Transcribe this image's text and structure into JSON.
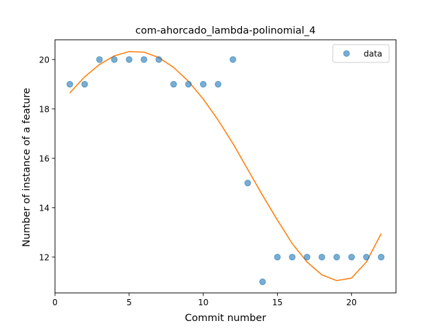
{
  "chart_data": {
    "type": "scatter",
    "title": "com-ahorcado_lambda-polinomial_4",
    "xlabel": "Commit number",
    "ylabel": "Number of instance of a feature",
    "xlim": [
      0,
      23
    ],
    "ylim": [
      10.55,
      20.8
    ],
    "xticks": [
      0,
      5,
      10,
      15,
      20
    ],
    "yticks": [
      12,
      14,
      16,
      18,
      20
    ],
    "grid": false,
    "legend_position": "upper right",
    "series": [
      {
        "name": "data",
        "kind": "scatter",
        "color": "#1f77b4",
        "x": [
          1,
          2,
          3,
          4,
          5,
          6,
          7,
          8,
          9,
          10,
          11,
          12,
          13,
          14,
          15,
          16,
          17,
          18,
          19,
          20,
          21,
          22
        ],
        "y": [
          19,
          19,
          20,
          20,
          20,
          20,
          20,
          19,
          19,
          19,
          19,
          20,
          15,
          11,
          12,
          12,
          12,
          12,
          12,
          12,
          12,
          12
        ]
      },
      {
        "kind": "line",
        "color": "#ff7f0e",
        "x": [
          1,
          2,
          3,
          4,
          5,
          6,
          7,
          8,
          9,
          10,
          11,
          12,
          13,
          14,
          15,
          16,
          17,
          18,
          19,
          20,
          21,
          22
        ],
        "y": [
          18.65,
          19.3,
          19.8,
          20.15,
          20.32,
          20.3,
          20.08,
          19.68,
          19.12,
          18.4,
          17.55,
          16.6,
          15.55,
          14.5,
          13.5,
          12.55,
          11.8,
          11.28,
          11.05,
          11.15,
          11.8,
          12.95
        ]
      }
    ]
  }
}
